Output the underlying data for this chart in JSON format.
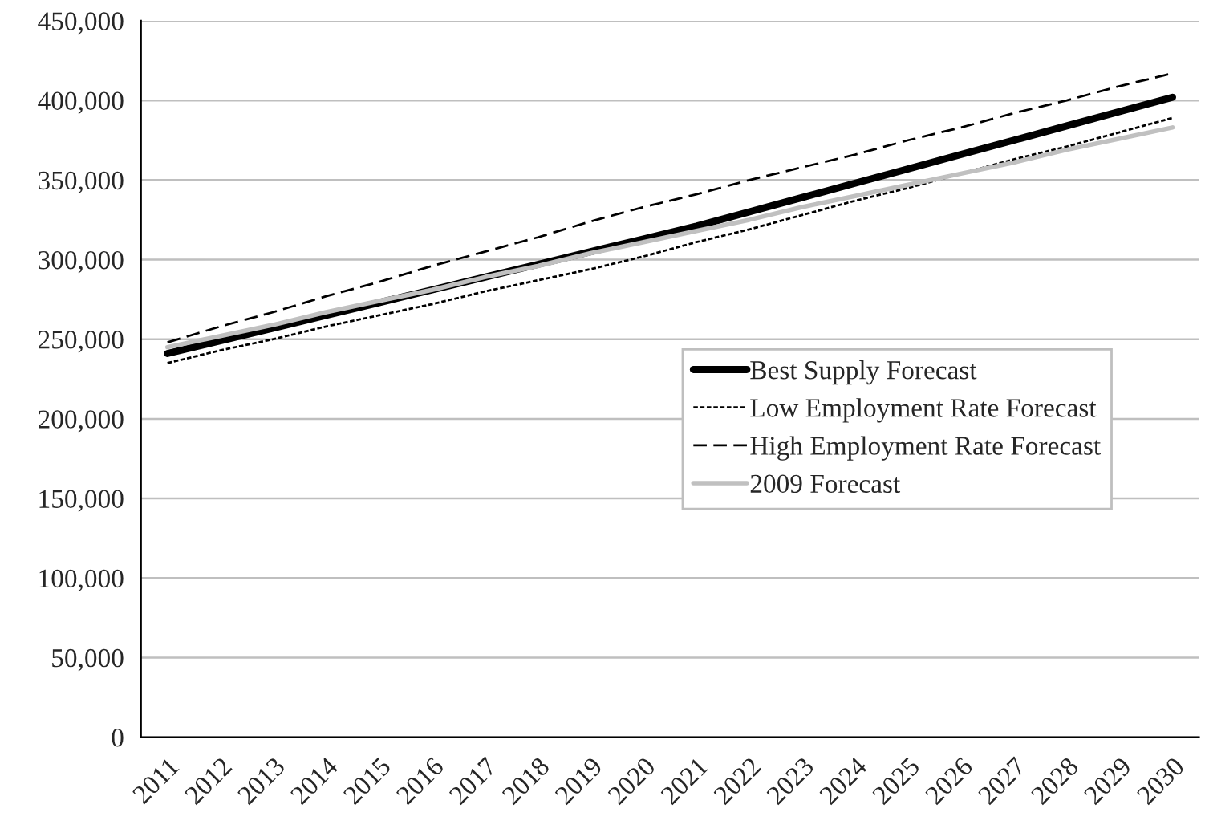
{
  "chart_data": {
    "type": "line",
    "categories": [
      "2011",
      "2012",
      "2013",
      "2014",
      "2015",
      "2016",
      "2017",
      "2018",
      "2019",
      "2020",
      "2021",
      "2022",
      "2023",
      "2024",
      "2025",
      "2026",
      "2027",
      "2028",
      "2029",
      "2030"
    ],
    "series": [
      {
        "name": "Best Supply Forecast",
        "color": "#000000",
        "line_style": "solid",
        "values": [
          241000,
          249000,
          257000,
          265000,
          273000,
          281000,
          289000,
          297000,
          305000,
          313000,
          321000,
          330000,
          339000,
          348000,
          357000,
          366000,
          375000,
          384000,
          393000,
          402000
        ]
      },
      {
        "name": "Low Employment Rate Forecast",
        "color": "#000000",
        "line_style": "dotted",
        "values": [
          235000,
          243000,
          250000,
          258000,
          265000,
          272000,
          280000,
          287000,
          294000,
          302000,
          311000,
          319000,
          328000,
          337000,
          345000,
          354000,
          363000,
          371000,
          380000,
          389000
        ]
      },
      {
        "name": "High Employment Rate Forecast",
        "color": "#000000",
        "line_style": "dashed",
        "values": [
          248000,
          258000,
          267000,
          277000,
          286000,
          296000,
          305000,
          314000,
          324000,
          333000,
          341000,
          350000,
          358000,
          366000,
          375000,
          383000,
          392000,
          400000,
          409000,
          417000
        ]
      },
      {
        "name": "2009 Forecast",
        "color": "#c0c0c0",
        "line_style": "solid",
        "values": [
          245000,
          252000,
          259000,
          267000,
          274000,
          281000,
          289000,
          296000,
          304000,
          311000,
          318000,
          325000,
          333000,
          340000,
          347000,
          354000,
          361000,
          369000,
          376000,
          383000
        ]
      }
    ],
    "ylim": [
      0,
      450000
    ],
    "yticks": [
      0,
      {
        "value": 50000,
        "label": "50,000"
      },
      {
        "value": 100000,
        "label": "100,000"
      },
      {
        "value": 150000,
        "label": "150,000"
      },
      {
        "value": 200000,
        "label": "200,000"
      },
      {
        "value": 250000,
        "label": "250,000"
      },
      {
        "value": 300000,
        "label": "300,000"
      },
      {
        "value": 350000,
        "label": "350,000"
      },
      {
        "value": 400000,
        "label": "400,000"
      },
      {
        "value": 450000,
        "label": "450,000"
      }
    ],
    "grid": "y",
    "legend": "bottom right"
  }
}
